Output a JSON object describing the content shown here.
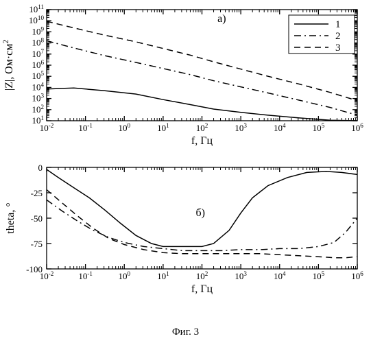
{
  "caption": "Фиг. 3",
  "xlabel": "f, Гц",
  "legend": {
    "items": [
      "1",
      "2",
      "3"
    ],
    "dash": [
      "solid",
      "dashdot",
      "dashed"
    ],
    "fontsize": 15
  },
  "colors": {
    "bg": "#ffffff",
    "axis": "#000000",
    "tick": "#000000",
    "series": "#000000",
    "text": "#000000"
  },
  "line_width": 1.5,
  "label_fontsize": 16,
  "tick_fontsize": 13,
  "caption_fontsize": 15,
  "x_axis": {
    "scale": "log",
    "xlim": [
      0.01,
      1000000.0
    ],
    "major_exp": [
      -2,
      -1,
      0,
      1,
      2,
      3,
      4,
      5,
      6
    ]
  },
  "top_chart": {
    "tag": "а)",
    "ylabel": "|Z|, Ом·см²",
    "yscale": "log",
    "ylim": [
      10,
      100000000000.0
    ],
    "major_exp": [
      1,
      2,
      3,
      4,
      5,
      6,
      7,
      8,
      9,
      10,
      11
    ],
    "series": [
      {
        "name": "1",
        "dash": "solid",
        "points": [
          [
            -2,
            3.85
          ],
          [
            -1.3,
            3.95
          ],
          [
            -0.5,
            3.7
          ],
          [
            0.3,
            3.4
          ],
          [
            1.0,
            2.9
          ],
          [
            1.7,
            2.45
          ],
          [
            2.3,
            2.05
          ],
          [
            3.0,
            1.75
          ],
          [
            3.7,
            1.5
          ],
          [
            4.5,
            1.25
          ],
          [
            5.3,
            1.05
          ],
          [
            6.0,
            1.0
          ]
        ]
      },
      {
        "name": "2",
        "dash": "dashdot",
        "points": [
          [
            -2,
            8.2
          ],
          [
            -1.3,
            7.55
          ],
          [
            -0.5,
            6.85
          ],
          [
            0.3,
            6.25
          ],
          [
            1.0,
            5.7
          ],
          [
            1.7,
            5.15
          ],
          [
            2.3,
            4.6
          ],
          [
            3.0,
            4.05
          ],
          [
            3.7,
            3.5
          ],
          [
            4.5,
            2.85
          ],
          [
            5.3,
            2.2
          ],
          [
            6.0,
            1.5
          ]
        ]
      },
      {
        "name": "3",
        "dash": "dashed",
        "points": [
          [
            -2,
            9.95
          ],
          [
            -1.3,
            9.35
          ],
          [
            -0.5,
            8.7
          ],
          [
            0.3,
            8.1
          ],
          [
            1.0,
            7.5
          ],
          [
            1.7,
            6.9
          ],
          [
            2.3,
            6.3
          ],
          [
            3.0,
            5.65
          ],
          [
            3.7,
            5.0
          ],
          [
            4.5,
            4.3
          ],
          [
            5.3,
            3.55
          ],
          [
            6.0,
            2.8
          ]
        ]
      }
    ]
  },
  "bottom_chart": {
    "tag": "б)",
    "ylabel": "theta, °",
    "yscale": "linear",
    "ylim": [
      0,
      -100
    ],
    "yticks": [
      0,
      -25,
      -50,
      -75,
      -100
    ],
    "series": [
      {
        "name": "1",
        "dash": "solid",
        "points": [
          [
            -2,
            -2
          ],
          [
            -1.7,
            -10
          ],
          [
            -1.3,
            -20
          ],
          [
            -0.9,
            -30
          ],
          [
            -0.5,
            -42
          ],
          [
            -0.1,
            -55
          ],
          [
            0.3,
            -67
          ],
          [
            0.7,
            -75
          ],
          [
            1.0,
            -78
          ],
          [
            1.5,
            -78
          ],
          [
            2.0,
            -78
          ],
          [
            2.3,
            -75
          ],
          [
            2.7,
            -62
          ],
          [
            3.0,
            -45
          ],
          [
            3.3,
            -30
          ],
          [
            3.7,
            -18
          ],
          [
            4.2,
            -10
          ],
          [
            4.7,
            -5
          ],
          [
            5.2,
            -4
          ],
          [
            5.6,
            -5
          ],
          [
            6.0,
            -7
          ]
        ]
      },
      {
        "name": "2",
        "dash": "dashdot",
        "points": [
          [
            -2,
            -32
          ],
          [
            -1.6,
            -43
          ],
          [
            -1.2,
            -53
          ],
          [
            -0.8,
            -62
          ],
          [
            -0.4,
            -69
          ],
          [
            0.0,
            -74
          ],
          [
            0.5,
            -78
          ],
          [
            1.0,
            -80
          ],
          [
            1.5,
            -82
          ],
          [
            2.0,
            -82
          ],
          [
            2.5,
            -82
          ],
          [
            3.0,
            -81
          ],
          [
            3.5,
            -81
          ],
          [
            4.0,
            -80
          ],
          [
            4.5,
            -80
          ],
          [
            5.0,
            -78
          ],
          [
            5.4,
            -74
          ],
          [
            5.7,
            -64
          ],
          [
            6.0,
            -50
          ]
        ]
      },
      {
        "name": "3",
        "dash": "dashed",
        "points": [
          [
            -2,
            -22
          ],
          [
            -1.6,
            -35
          ],
          [
            -1.2,
            -48
          ],
          [
            -0.8,
            -60
          ],
          [
            -0.4,
            -70
          ],
          [
            0.0,
            -76
          ],
          [
            0.5,
            -81
          ],
          [
            1.0,
            -84
          ],
          [
            1.5,
            -85
          ],
          [
            2.0,
            -85
          ],
          [
            2.5,
            -85
          ],
          [
            3.0,
            -85
          ],
          [
            3.5,
            -85
          ],
          [
            4.0,
            -86
          ],
          [
            4.5,
            -87
          ],
          [
            5.0,
            -88
          ],
          [
            5.4,
            -89
          ],
          [
            5.7,
            -89
          ],
          [
            6.0,
            -88
          ]
        ]
      }
    ]
  }
}
